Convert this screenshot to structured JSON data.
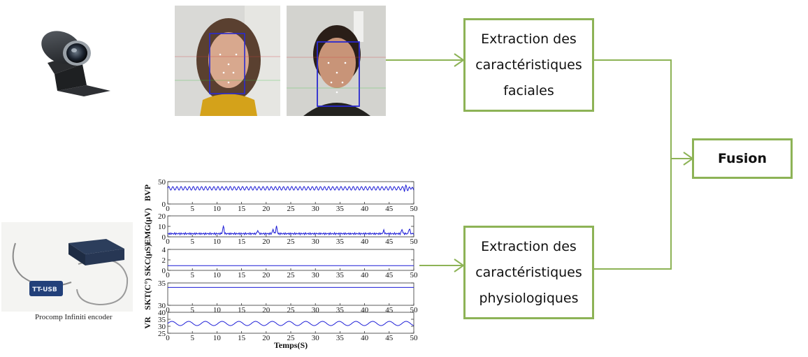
{
  "boxes": {
    "facial": [
      "Extraction des",
      "caractéristiques",
      "faciales"
    ],
    "physio": [
      "Extraction des",
      "caractéristiques",
      "physiologiques"
    ],
    "fusion": "Fusion"
  },
  "device_caption": "Procomp Infiniti encoder",
  "colors": {
    "accent": "#8db356",
    "signal": "#1a1ad6",
    "face_box": "#2a2ad0"
  },
  "icons": [
    "webcam-icon",
    "face-photo",
    "procomp-device-photo"
  ],
  "chart_data": {
    "type": "line",
    "xlabel": "Temps(S)",
    "xlim": [
      0,
      50
    ],
    "x_ticks": [
      0,
      5,
      10,
      15,
      20,
      25,
      30,
      35,
      40,
      45,
      50
    ],
    "panels": [
      {
        "ylabel": "BVP",
        "ylim": [
          0,
          50
        ],
        "y_ticks": [
          0,
          50
        ],
        "baseline": 35,
        "amplitude": 4,
        "pattern": "pulse"
      },
      {
        "ylabel": "EMG(µV)",
        "ylim": [
          0,
          20
        ],
        "y_ticks": [
          0,
          10,
          20
        ],
        "baseline": 3,
        "amplitude": 1,
        "pattern": "spikes"
      },
      {
        "ylabel": "SKC(µS)",
        "ylim": [
          0,
          4
        ],
        "y_ticks": [
          0,
          2,
          4
        ],
        "baseline": 0.9,
        "amplitude": 0,
        "pattern": "flat"
      },
      {
        "ylabel": "SKT(C°)",
        "ylim": [
          30,
          35
        ],
        "y_ticks": [
          30,
          35
        ],
        "baseline": 34,
        "amplitude": 0,
        "pattern": "flat"
      },
      {
        "ylabel": "VR",
        "ylim": [
          25,
          40
        ],
        "y_ticks": [
          25,
          30,
          35,
          40
        ],
        "baseline": 32,
        "amplitude": 1.5,
        "pattern": "resp"
      }
    ]
  }
}
